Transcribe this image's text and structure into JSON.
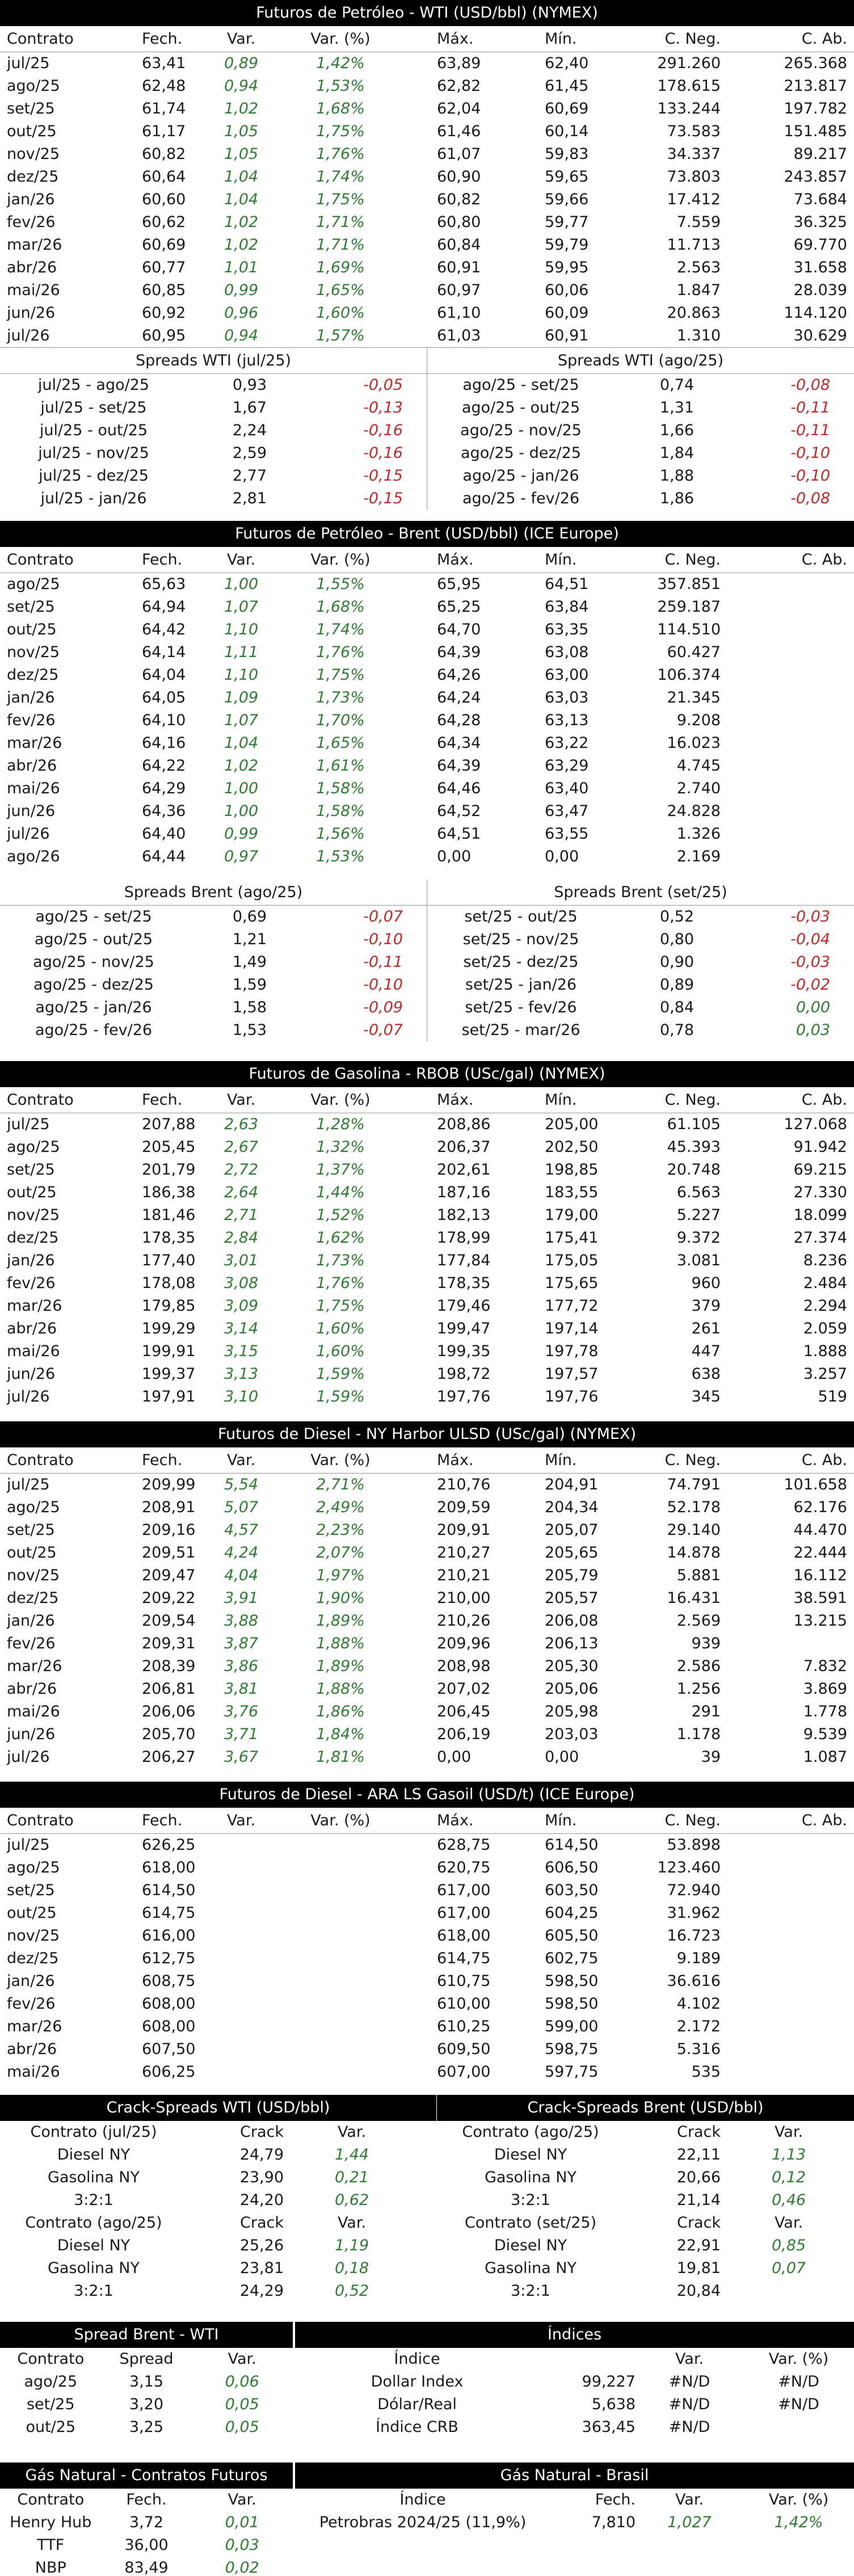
{
  "wti": {
    "title": "Futuros de Petróleo - WTI (USD/bbl) (NYMEX)",
    "headers": [
      "Contrato",
      "Fech.",
      "Var.",
      "Var. (%)",
      "Máx.",
      "Mín.",
      "C. Neg.",
      "C. Ab."
    ],
    "rows": [
      [
        "jul/25",
        "63,41",
        "0,89",
        "1,42%",
        "63,89",
        "62,40",
        "291.260",
        "265.368"
      ],
      [
        "ago/25",
        "62,48",
        "0,94",
        "1,53%",
        "62,82",
        "61,45",
        "178.615",
        "213.817"
      ],
      [
        "set/25",
        "61,74",
        "1,02",
        "1,68%",
        "62,04",
        "60,69",
        "133.244",
        "197.782"
      ],
      [
        "out/25",
        "61,17",
        "1,05",
        "1,75%",
        "61,46",
        "60,14",
        "73.583",
        "151.485"
      ],
      [
        "nov/25",
        "60,82",
        "1,05",
        "1,76%",
        "61,07",
        "59,83",
        "34.337",
        "89.217"
      ],
      [
        "dez/25",
        "60,64",
        "1,04",
        "1,74%",
        "60,90",
        "59,65",
        "73.803",
        "243.857"
      ],
      [
        "jan/26",
        "60,60",
        "1,04",
        "1,75%",
        "60,82",
        "59,66",
        "17.412",
        "73.684"
      ],
      [
        "fev/26",
        "60,62",
        "1,02",
        "1,71%",
        "60,80",
        "59,77",
        "7.559",
        "36.325"
      ],
      [
        "mar/26",
        "60,69",
        "1,02",
        "1,71%",
        "60,84",
        "59,79",
        "11.713",
        "69.770"
      ],
      [
        "abr/26",
        "60,77",
        "1,01",
        "1,69%",
        "60,91",
        "59,95",
        "2.563",
        "31.658"
      ],
      [
        "mai/26",
        "60,85",
        "0,99",
        "1,65%",
        "60,97",
        "60,06",
        "1.847",
        "28.039"
      ],
      [
        "jun/26",
        "60,92",
        "0,96",
        "1,60%",
        "61,10",
        "60,09",
        "20.863",
        "114.120"
      ],
      [
        "jul/26",
        "60,95",
        "0,94",
        "1,57%",
        "61,03",
        "60,91",
        "1.310",
        "30.629"
      ]
    ],
    "spreads_left_title": "Spreads WTI (jul/25)",
    "spreads_right_title": "Spreads WTI (ago/25)",
    "spreads_left": [
      [
        "jul/25 - ago/25",
        "0,93",
        "-0,05"
      ],
      [
        "jul/25 - set/25",
        "1,67",
        "-0,13"
      ],
      [
        "jul/25 - out/25",
        "2,24",
        "-0,16"
      ],
      [
        "jul/25 - nov/25",
        "2,59",
        "-0,16"
      ],
      [
        "jul/25 - dez/25",
        "2,77",
        "-0,15"
      ],
      [
        "jul/25 - jan/26",
        "2,81",
        "-0,15"
      ]
    ],
    "spreads_right": [
      [
        "ago/25 - set/25",
        "0,74",
        "-0,08"
      ],
      [
        "ago/25 - out/25",
        "1,31",
        "-0,11"
      ],
      [
        "ago/25 - nov/25",
        "1,66",
        "-0,11"
      ],
      [
        "ago/25 - dez/25",
        "1,84",
        "-0,10"
      ],
      [
        "ago/25 - jan/26",
        "1,88",
        "-0,10"
      ],
      [
        "ago/25 - fev/26",
        "1,86",
        "-0,08"
      ]
    ]
  },
  "brent": {
    "title": "Futuros de Petróleo - Brent (USD/bbl) (ICE Europe)",
    "headers": [
      "Contrato",
      "Fech.",
      "Var.",
      "Var. (%)",
      "Máx.",
      "Mín.",
      "C. Neg.",
      "C. Ab."
    ],
    "rows": [
      [
        "ago/25",
        "65,63",
        "1,00",
        "1,55%",
        "65,95",
        "64,51",
        "357.851",
        ""
      ],
      [
        "set/25",
        "64,94",
        "1,07",
        "1,68%",
        "65,25",
        "63,84",
        "259.187",
        ""
      ],
      [
        "out/25",
        "64,42",
        "1,10",
        "1,74%",
        "64,70",
        "63,35",
        "114.510",
        ""
      ],
      [
        "nov/25",
        "64,14",
        "1,11",
        "1,76%",
        "64,39",
        "63,08",
        "60.427",
        ""
      ],
      [
        "dez/25",
        "64,04",
        "1,10",
        "1,75%",
        "64,26",
        "63,00",
        "106.374",
        ""
      ],
      [
        "jan/26",
        "64,05",
        "1,09",
        "1,73%",
        "64,24",
        "63,03",
        "21.345",
        ""
      ],
      [
        "fev/26",
        "64,10",
        "1,07",
        "1,70%",
        "64,28",
        "63,13",
        "9.208",
        ""
      ],
      [
        "mar/26",
        "64,16",
        "1,04",
        "1,65%",
        "64,34",
        "63,22",
        "16.023",
        ""
      ],
      [
        "abr/26",
        "64,22",
        "1,02",
        "1,61%",
        "64,39",
        "63,29",
        "4.745",
        ""
      ],
      [
        "mai/26",
        "64,29",
        "1,00",
        "1,58%",
        "64,46",
        "63,40",
        "2.740",
        ""
      ],
      [
        "jun/26",
        "64,36",
        "1,00",
        "1,58%",
        "64,52",
        "63,47",
        "24.828",
        ""
      ],
      [
        "jul/26",
        "64,40",
        "0,99",
        "1,56%",
        "64,51",
        "63,55",
        "1.326",
        ""
      ],
      [
        "ago/26",
        "64,44",
        "0,97",
        "1,53%",
        "0,00",
        "0,00",
        "2.169",
        ""
      ]
    ],
    "spreads_left_title": "Spreads Brent (ago/25)",
    "spreads_right_title": "Spreads Brent (set/25)",
    "spreads_left": [
      [
        "ago/25 - set/25",
        "0,69",
        "-0,07"
      ],
      [
        "ago/25 - out/25",
        "1,21",
        "-0,10"
      ],
      [
        "ago/25 - nov/25",
        "1,49",
        "-0,11"
      ],
      [
        "ago/25 - dez/25",
        "1,59",
        "-0,10"
      ],
      [
        "ago/25 - jan/26",
        "1,58",
        "-0,09"
      ],
      [
        "ago/25 - fev/26",
        "1,53",
        "-0,07"
      ]
    ],
    "spreads_right": [
      [
        "set/25 - out/25",
        "0,52",
        "-0,03"
      ],
      [
        "set/25 - nov/25",
        "0,80",
        "-0,04"
      ],
      [
        "set/25 - dez/25",
        "0,90",
        "-0,03"
      ],
      [
        "set/25 - jan/26",
        "0,89",
        "-0,02"
      ],
      [
        "set/25 - fev/26",
        "0,84",
        "0,00"
      ],
      [
        "set/25 - mar/26",
        "0,78",
        "0,03"
      ]
    ]
  },
  "rbob": {
    "title": "Futuros de Gasolina - RBOB (USc/gal) (NYMEX)",
    "headers": [
      "Contrato",
      "Fech.",
      "Var.",
      "Var. (%)",
      "Máx.",
      "Mín.",
      "C. Neg.",
      "C. Ab."
    ],
    "rows": [
      [
        "jul/25",
        "207,88",
        "2,63",
        "1,28%",
        "208,86",
        "205,00",
        "61.105",
        "127.068"
      ],
      [
        "ago/25",
        "205,45",
        "2,67",
        "1,32%",
        "206,37",
        "202,50",
        "45.393",
        "91.942"
      ],
      [
        "set/25",
        "201,79",
        "2,72",
        "1,37%",
        "202,61",
        "198,85",
        "20.748",
        "69.215"
      ],
      [
        "out/25",
        "186,38",
        "2,64",
        "1,44%",
        "187,16",
        "183,55",
        "6.563",
        "27.330"
      ],
      [
        "nov/25",
        "181,46",
        "2,71",
        "1,52%",
        "182,13",
        "179,00",
        "5.227",
        "18.099"
      ],
      [
        "dez/25",
        "178,35",
        "2,84",
        "1,62%",
        "178,99",
        "175,41",
        "9.372",
        "27.374"
      ],
      [
        "jan/26",
        "177,40",
        "3,01",
        "1,73%",
        "177,84",
        "175,05",
        "3.081",
        "8.236"
      ],
      [
        "fev/26",
        "178,08",
        "3,08",
        "1,76%",
        "178,35",
        "175,65",
        "960",
        "2.484"
      ],
      [
        "mar/26",
        "179,85",
        "3,09",
        "1,75%",
        "179,46",
        "177,72",
        "379",
        "2.294"
      ],
      [
        "abr/26",
        "199,29",
        "3,14",
        "1,60%",
        "199,47",
        "197,14",
        "261",
        "2.059"
      ],
      [
        "mai/26",
        "199,91",
        "3,15",
        "1,60%",
        "199,35",
        "197,78",
        "447",
        "1.888"
      ],
      [
        "jun/26",
        "199,37",
        "3,13",
        "1,59%",
        "198,72",
        "197,57",
        "638",
        "3.257"
      ],
      [
        "jul/26",
        "197,91",
        "3,10",
        "1,59%",
        "197,76",
        "197,76",
        "345",
        "519"
      ]
    ]
  },
  "ulsd": {
    "title": "Futuros de Diesel - NY Harbor ULSD (USc/gal) (NYMEX)",
    "headers": [
      "Contrato",
      "Fech.",
      "Var.",
      "Var. (%)",
      "Máx.",
      "Mín.",
      "C. Neg.",
      "C. Ab."
    ],
    "rows": [
      [
        "jul/25",
        "209,99",
        "5,54",
        "2,71%",
        "210,76",
        "204,91",
        "74.791",
        "101.658"
      ],
      [
        "ago/25",
        "208,91",
        "5,07",
        "2,49%",
        "209,59",
        "204,34",
        "52.178",
        "62.176"
      ],
      [
        "set/25",
        "209,16",
        "4,57",
        "2,23%",
        "209,91",
        "205,07",
        "29.140",
        "44.470"
      ],
      [
        "out/25",
        "209,51",
        "4,24",
        "2,07%",
        "210,27",
        "205,65",
        "14.878",
        "22.444"
      ],
      [
        "nov/25",
        "209,47",
        "4,04",
        "1,97%",
        "210,21",
        "205,79",
        "5.881",
        "16.112"
      ],
      [
        "dez/25",
        "209,22",
        "3,91",
        "1,90%",
        "210,00",
        "205,57",
        "16.431",
        "38.591"
      ],
      [
        "jan/26",
        "209,54",
        "3,88",
        "1,89%",
        "210,26",
        "206,08",
        "2.569",
        "13.215"
      ],
      [
        "fev/26",
        "209,31",
        "3,87",
        "1,88%",
        "209,96",
        "206,13",
        "939",
        ""
      ],
      [
        "mar/26",
        "208,39",
        "3,86",
        "1,89%",
        "208,98",
        "205,30",
        "2.586",
        "7.832"
      ],
      [
        "abr/26",
        "206,81",
        "3,81",
        "1,88%",
        "207,02",
        "205,06",
        "1.256",
        "3.869"
      ],
      [
        "mai/26",
        "206,06",
        "3,76",
        "1,86%",
        "206,45",
        "205,98",
        "291",
        "1.778"
      ],
      [
        "jun/26",
        "205,70",
        "3,71",
        "1,84%",
        "206,19",
        "203,03",
        "1.178",
        "9.539"
      ],
      [
        "jul/26",
        "206,27",
        "3,67",
        "1,81%",
        "0,00",
        "0,00",
        "39",
        "1.087"
      ]
    ]
  },
  "gasoil": {
    "title": "Futuros de Diesel - ARA LS Gasoil (USD/t) (ICE Europe)",
    "headers": [
      "Contrato",
      "Fech.",
      "Var.",
      "Var. (%)",
      "Máx.",
      "Mín.",
      "C. Neg.",
      "C. Ab."
    ],
    "rows": [
      [
        "jul/25",
        "626,25",
        "",
        "",
        "628,75",
        "614,50",
        "53.898",
        ""
      ],
      [
        "ago/25",
        "618,00",
        "",
        "",
        "620,75",
        "606,50",
        "123.460",
        ""
      ],
      [
        "set/25",
        "614,50",
        "",
        "",
        "617,00",
        "603,50",
        "72.940",
        ""
      ],
      [
        "out/25",
        "614,75",
        "",
        "",
        "617,00",
        "604,25",
        "31.962",
        ""
      ],
      [
        "nov/25",
        "616,00",
        "",
        "",
        "618,00",
        "605,50",
        "16.723",
        ""
      ],
      [
        "dez/25",
        "612,75",
        "",
        "",
        "614,75",
        "602,75",
        "9.189",
        ""
      ],
      [
        "jan/26",
        "608,75",
        "",
        "",
        "610,75",
        "598,50",
        "36.616",
        ""
      ],
      [
        "fev/26",
        "608,00",
        "",
        "",
        "610,00",
        "598,50",
        "4.102",
        ""
      ],
      [
        "mar/26",
        "608,00",
        "",
        "",
        "610,25",
        "599,00",
        "2.172",
        ""
      ],
      [
        "abr/26",
        "607,50",
        "",
        "",
        "609,50",
        "598,75",
        "5.316",
        ""
      ],
      [
        "mai/26",
        "606,25",
        "",
        "",
        "607,00",
        "597,75",
        "535",
        ""
      ]
    ]
  },
  "crack": {
    "left_title": "Crack-Spreads WTI (USD/bbl)",
    "right_title": "Crack-Spreads Brent (USD/bbl)",
    "left_blocks": [
      {
        "head": [
          "Contrato (jul/25)",
          "Crack",
          "Var."
        ],
        "rows": [
          [
            "Diesel NY",
            "24,79",
            "1,44"
          ],
          [
            "Gasolina NY",
            "23,90",
            "0,21"
          ],
          [
            "3:2:1",
            "24,20",
            "0,62"
          ]
        ]
      },
      {
        "head": [
          "Contrato (ago/25)",
          "Crack",
          "Var."
        ],
        "rows": [
          [
            "Diesel NY",
            "25,26",
            "1,19"
          ],
          [
            "Gasolina NY",
            "23,81",
            "0,18"
          ],
          [
            "3:2:1",
            "24,29",
            "0,52"
          ]
        ]
      }
    ],
    "right_blocks": [
      {
        "head": [
          "Contrato (ago/25)",
          "Crack",
          "Var."
        ],
        "rows": [
          [
            "Diesel NY",
            "22,11",
            "1,13"
          ],
          [
            "Gasolina NY",
            "20,66",
            "0,12"
          ],
          [
            "3:2:1",
            "21,14",
            "0,46"
          ]
        ]
      },
      {
        "head": [
          "Contrato (set/25)",
          "Crack",
          "Var."
        ],
        "rows": [
          [
            "Diesel NY",
            "22,91",
            "0,85"
          ],
          [
            "Gasolina NY",
            "19,81",
            "0,07"
          ],
          [
            "3:2:1",
            "20,84",
            ""
          ]
        ]
      }
    ]
  },
  "spread_bw": {
    "title": "Spread Brent - WTI",
    "headers": [
      "Contrato",
      "Spread",
      "Var."
    ],
    "rows": [
      [
        "ago/25",
        "3,15",
        "0,06"
      ],
      [
        "set/25",
        "3,20",
        "0,05"
      ],
      [
        "out/25",
        "3,25",
        "0,05"
      ]
    ]
  },
  "indices": {
    "title": "Índices",
    "headers": [
      "Índice",
      "",
      "Var.",
      "Var. (%)"
    ],
    "rows": [
      [
        "Dollar Index",
        "99,227",
        "#N/D",
        "#N/D"
      ],
      [
        "Dólar/Real",
        "5,638",
        "#N/D",
        "#N/D"
      ],
      [
        "Índice CRB",
        "363,45",
        "#N/D",
        ""
      ]
    ]
  },
  "gas_fut": {
    "title": "Gás Natural - Contratos Futuros",
    "headers": [
      "Contrato",
      "Fech.",
      "Var."
    ],
    "rows": [
      [
        "Henry Hub",
        "3,72",
        "0,01"
      ],
      [
        "TTF",
        "36,00",
        "0,03"
      ],
      [
        "NBP",
        "83,49",
        "0,02"
      ]
    ]
  },
  "gas_br": {
    "title": "Gás Natural - Brasil",
    "headers": [
      "Índice",
      "Fech.",
      "Var.",
      "Var. (%)"
    ],
    "rows": [
      [
        "Petrobras 2024/25 (11,9%)",
        "7,810",
        "1,027",
        "1,42%"
      ]
    ]
  },
  "colors": {
    "positive": "#2e7d32",
    "negative": "#c62828",
    "header_bg": "#000000"
  }
}
